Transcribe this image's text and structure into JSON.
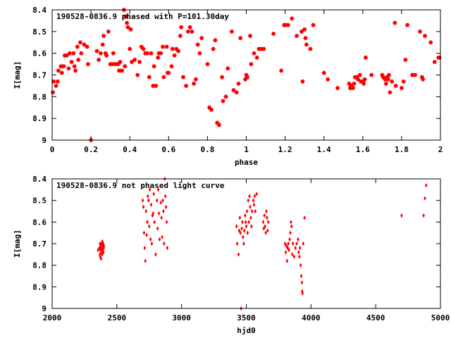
{
  "chart_data": [
    {
      "type": "scatter",
      "title": "190528-0836.9 phased with P=101.30day",
      "xlabel": "phase",
      "ylabel": "I[mag]",
      "xlim": [
        0,
        2
      ],
      "ylim": [
        9,
        8.4
      ],
      "y_inverted": true,
      "xticks": [
        0,
        0.2,
        0.4,
        0.6,
        0.8,
        1,
        1.2,
        1.4,
        1.6,
        1.8,
        2
      ],
      "xtick_labels": [
        "0",
        "0.2",
        "0.4",
        "0.6",
        "0.8",
        "1",
        "1.2",
        "1.4",
        "1.6",
        "1.8",
        "2"
      ],
      "yticks": [
        8.4,
        8.5,
        8.6,
        8.7,
        8.8,
        8.9,
        9
      ],
      "ytick_labels": [
        "8.4",
        "8.5",
        "8.6",
        "8.7",
        "8.8",
        "8.9",
        "9"
      ],
      "marker_color": "#ff0000",
      "marker": "star",
      "points": [
        [
          0.004,
          8.78
        ],
        [
          0.008,
          8.73
        ],
        [
          0.02,
          8.75
        ],
        [
          0.028,
          8.73
        ],
        [
          0.032,
          8.68
        ],
        [
          0.045,
          8.66
        ],
        [
          0.05,
          8.69
        ],
        [
          0.06,
          8.66
        ],
        [
          0.065,
          8.61
        ],
        [
          0.075,
          8.61
        ],
        [
          0.085,
          8.67
        ],
        [
          0.09,
          8.6
        ],
        [
          0.1,
          8.64
        ],
        [
          0.11,
          8.6
        ],
        [
          0.115,
          8.66
        ],
        [
          0.12,
          8.68
        ],
        [
          0.13,
          8.57
        ],
        [
          0.135,
          8.63
        ],
        [
          0.145,
          8.55
        ],
        [
          0.15,
          8.6
        ],
        [
          0.165,
          8.56
        ],
        [
          0.18,
          8.57
        ],
        [
          0.185,
          8.65
        ],
        [
          0.2,
          9.0
        ],
        [
          0.23,
          8.59
        ],
        [
          0.24,
          8.63
        ],
        [
          0.25,
          8.6
        ],
        [
          0.26,
          8.56
        ],
        [
          0.265,
          8.52
        ],
        [
          0.275,
          8.6
        ],
        [
          0.28,
          8.61
        ],
        [
          0.29,
          8.5
        ],
        [
          0.3,
          8.65
        ],
        [
          0.31,
          8.65
        ],
        [
          0.315,
          8.6
        ],
        [
          0.325,
          8.65
        ],
        [
          0.34,
          8.65
        ],
        [
          0.345,
          8.68
        ],
        [
          0.35,
          8.64
        ],
        [
          0.36,
          8.68
        ],
        [
          0.37,
          8.4
        ],
        [
          0.375,
          8.66
        ],
        [
          0.38,
          8.43
        ],
        [
          0.385,
          8.46
        ],
        [
          0.39,
          8.48
        ],
        [
          0.4,
          8.58
        ],
        [
          0.405,
          8.49
        ],
        [
          0.41,
          8.64
        ],
        [
          0.425,
          8.63
        ],
        [
          0.44,
          8.7
        ],
        [
          0.45,
          8.64
        ],
        [
          0.46,
          8.57
        ],
        [
          0.47,
          8.58
        ],
        [
          0.48,
          8.6
        ],
        [
          0.49,
          8.6
        ],
        [
          0.5,
          8.71
        ],
        [
          0.51,
          8.6
        ],
        [
          0.52,
          8.75
        ],
        [
          0.525,
          8.66
        ],
        [
          0.535,
          8.75
        ],
        [
          0.545,
          8.62
        ],
        [
          0.55,
          8.6
        ],
        [
          0.56,
          8.6
        ],
        [
          0.57,
          8.57
        ],
        [
          0.575,
          8.71
        ],
        [
          0.59,
          8.57
        ],
        [
          0.595,
          8.69
        ],
        [
          0.6,
          8.69
        ],
        [
          0.615,
          8.66
        ],
        [
          0.62,
          8.58
        ],
        [
          0.63,
          8.61
        ],
        [
          0.64,
          8.58
        ],
        [
          0.65,
          8.59
        ],
        [
          0.66,
          8.52
        ],
        [
          0.665,
          8.48
        ],
        [
          0.675,
          8.71
        ],
        [
          0.69,
          8.75
        ],
        [
          0.7,
          8.5
        ],
        [
          0.71,
          8.48
        ],
        [
          0.72,
          8.5
        ],
        [
          0.73,
          8.74
        ],
        [
          0.74,
          8.72
        ],
        [
          0.75,
          8.56
        ],
        [
          0.76,
          8.6
        ],
        [
          0.77,
          8.53
        ],
        [
          0.8,
          8.65
        ],
        [
          0.81,
          8.85
        ],
        [
          0.82,
          8.86
        ],
        [
          0.83,
          8.58
        ],
        [
          0.84,
          8.54
        ],
        [
          0.85,
          8.92
        ],
        [
          0.86,
          8.93
        ],
        [
          0.875,
          8.71
        ],
        [
          0.88,
          8.82
        ],
        [
          0.895,
          8.8
        ],
        [
          0.905,
          8.67
        ],
        [
          0.925,
          8.5
        ],
        [
          0.935,
          8.77
        ],
        [
          0.95,
          8.78
        ],
        [
          0.96,
          8.74
        ],
        [
          0.97,
          8.53
        ],
        [
          0.995,
          8.72
        ],
        [
          1.0,
          8.7
        ],
        [
          1.005,
          8.71
        ],
        [
          1.02,
          8.52
        ],
        [
          1.025,
          8.65
        ],
        [
          1.04,
          8.6
        ],
        [
          1.055,
          8.62
        ],
        [
          1.065,
          8.58
        ],
        [
          1.08,
          8.58
        ],
        [
          1.09,
          8.58
        ],
        [
          1.14,
          8.51
        ],
        [
          1.18,
          8.68
        ],
        [
          1.195,
          8.47
        ],
        [
          1.2,
          8.47
        ],
        [
          1.215,
          8.47
        ],
        [
          1.235,
          8.44
        ],
        [
          1.26,
          8.52
        ],
        [
          1.285,
          8.5
        ],
        [
          1.29,
          8.73
        ],
        [
          1.3,
          8.49
        ],
        [
          1.305,
          8.53
        ],
        [
          1.31,
          8.56
        ],
        [
          1.33,
          8.58
        ],
        [
          1.345,
          8.47
        ],
        [
          1.4,
          8.69
        ],
        [
          1.42,
          8.72
        ],
        [
          1.47,
          8.76
        ],
        [
          1.53,
          8.74
        ],
        [
          1.535,
          8.76
        ],
        [
          1.54,
          8.75
        ],
        [
          1.55,
          8.76
        ],
        [
          1.555,
          8.74
        ],
        [
          1.56,
          8.71
        ],
        [
          1.57,
          8.71
        ],
        [
          1.575,
          8.72
        ],
        [
          1.585,
          8.7
        ],
        [
          1.59,
          8.73
        ],
        [
          1.6,
          8.73
        ],
        [
          1.605,
          8.74
        ],
        [
          1.61,
          8.72
        ],
        [
          1.615,
          8.62
        ],
        [
          1.645,
          8.7
        ],
        [
          1.7,
          8.7
        ],
        [
          1.705,
          8.71
        ],
        [
          1.715,
          8.72
        ],
        [
          1.72,
          8.74
        ],
        [
          1.725,
          8.71
        ],
        [
          1.73,
          8.72
        ],
        [
          1.735,
          8.7
        ],
        [
          1.74,
          8.78
        ],
        [
          1.75,
          8.73
        ],
        [
          1.765,
          8.46
        ],
        [
          1.77,
          8.75
        ],
        [
          1.8,
          8.76
        ],
        [
          1.81,
          8.73
        ],
        [
          1.82,
          8.63
        ],
        [
          1.83,
          8.47
        ],
        [
          1.855,
          8.7
        ],
        [
          1.87,
          8.7
        ],
        [
          1.895,
          8.5
        ],
        [
          1.905,
          8.71
        ],
        [
          1.91,
          8.72
        ],
        [
          1.92,
          8.52
        ],
        [
          1.95,
          8.55
        ],
        [
          1.97,
          8.64
        ],
        [
          1.99,
          8.62
        ],
        [
          1.995,
          8.62
        ]
      ]
    },
    {
      "type": "scatter",
      "title": "190528-0836.9 not phased light curve",
      "xlabel": "hjd0",
      "ylabel": "I[mag]",
      "xlim": [
        2000,
        5000
      ],
      "ylim": [
        9,
        8.4
      ],
      "y_inverted": true,
      "xticks": [
        2000,
        2500,
        3000,
        3500,
        4000,
        4500,
        5000
      ],
      "xtick_labels": [
        "2000",
        "2500",
        "3000",
        "3500",
        "4000",
        "4500",
        "5000"
      ],
      "yticks": [
        8.4,
        8.5,
        8.6,
        8.7,
        8.8,
        8.9,
        9
      ],
      "ytick_labels": [
        "8.4",
        "8.5",
        "8.6",
        "8.7",
        "8.8",
        "8.9",
        "9"
      ],
      "marker_color": "#ff0000",
      "marker": "diamond",
      "points": [
        [
          2355,
          8.73
        ],
        [
          2365,
          8.72
        ],
        [
          2368,
          8.75
        ],
        [
          2370,
          8.7
        ],
        [
          2372,
          8.76
        ],
        [
          2374,
          8.73
        ],
        [
          2376,
          8.71
        ],
        [
          2378,
          8.77
        ],
        [
          2380,
          8.74
        ],
        [
          2382,
          8.7
        ],
        [
          2384,
          8.72
        ],
        [
          2386,
          8.75
        ],
        [
          2388,
          8.69
        ],
        [
          2390,
          8.71
        ],
        [
          2392,
          8.73
        ],
        [
          2394,
          8.7
        ],
        [
          2396,
          8.74
        ],
        [
          2398,
          8.72
        ],
        [
          2400,
          8.71
        ],
        [
          2700,
          8.5
        ],
        [
          2705,
          8.53
        ],
        [
          2710,
          8.65
        ],
        [
          2715,
          8.72
        ],
        [
          2720,
          8.78
        ],
        [
          2725,
          8.55
        ],
        [
          2730,
          8.66
        ],
        [
          2735,
          8.6
        ],
        [
          2740,
          8.48
        ],
        [
          2745,
          8.5
        ],
        [
          2750,
          8.62
        ],
        [
          2755,
          8.45
        ],
        [
          2760,
          8.68
        ],
        [
          2765,
          8.52
        ],
        [
          2770,
          8.7
        ],
        [
          2775,
          8.57
        ],
        [
          2780,
          8.56
        ],
        [
          2785,
          8.47
        ],
        [
          2790,
          8.6
        ],
        [
          2800,
          8.75
        ],
        [
          2810,
          8.5
        ],
        [
          2815,
          8.63
        ],
        [
          2820,
          8.45
        ],
        [
          2825,
          8.56
        ],
        [
          2830,
          8.68
        ],
        [
          2840,
          8.51
        ],
        [
          2845,
          8.58
        ],
        [
          2850,
          8.67
        ],
        [
          2855,
          8.5
        ],
        [
          2860,
          8.55
        ],
        [
          2865,
          8.7
        ],
        [
          2870,
          8.4
        ],
        [
          2875,
          8.48
        ],
        [
          2880,
          8.53
        ],
        [
          2885,
          8.6
        ],
        [
          2890,
          8.72
        ],
        [
          3425,
          8.62
        ],
        [
          3430,
          8.7
        ],
        [
          3440,
          8.75
        ],
        [
          3445,
          8.64
        ],
        [
          3450,
          8.58
        ],
        [
          3455,
          8.65
        ],
        [
          3460,
          9.0
        ],
        [
          3465,
          8.63
        ],
        [
          3470,
          8.6
        ],
        [
          3475,
          8.67
        ],
        [
          3480,
          8.7
        ],
        [
          3485,
          8.64
        ],
        [
          3490,
          8.57
        ],
        [
          3495,
          8.6
        ],
        [
          3500,
          8.62
        ],
        [
          3505,
          8.55
        ],
        [
          3510,
          8.65
        ],
        [
          3515,
          8.5
        ],
        [
          3520,
          8.6
        ],
        [
          3525,
          8.48
        ],
        [
          3530,
          8.53
        ],
        [
          3535,
          8.58
        ],
        [
          3540,
          8.62
        ],
        [
          3545,
          8.55
        ],
        [
          3555,
          8.5
        ],
        [
          3560,
          8.52
        ],
        [
          3565,
          8.48
        ],
        [
          3570,
          8.55
        ],
        [
          3580,
          8.47
        ],
        [
          3630,
          8.6
        ],
        [
          3635,
          8.63
        ],
        [
          3640,
          8.57
        ],
        [
          3645,
          8.62
        ],
        [
          3650,
          8.65
        ],
        [
          3655,
          8.55
        ],
        [
          3660,
          8.58
        ],
        [
          3665,
          8.64
        ],
        [
          3670,
          8.6
        ],
        [
          3800,
          8.7
        ],
        [
          3805,
          8.74
        ],
        [
          3810,
          8.71
        ],
        [
          3815,
          8.78
        ],
        [
          3820,
          8.72
        ],
        [
          3825,
          8.7
        ],
        [
          3830,
          8.73
        ],
        [
          3835,
          8.68
        ],
        [
          3840,
          8.65
        ],
        [
          3845,
          8.6
        ],
        [
          3850,
          8.62
        ],
        [
          3855,
          8.75
        ],
        [
          3860,
          8.7
        ],
        [
          3870,
          8.76
        ],
        [
          3880,
          8.72
        ],
        [
          3890,
          8.7
        ],
        [
          3900,
          8.68
        ],
        [
          3905,
          8.74
        ],
        [
          3910,
          8.76
        ],
        [
          3915,
          8.72
        ],
        [
          3920,
          8.8
        ],
        [
          3925,
          8.85
        ],
        [
          3930,
          8.88
        ],
        [
          3932,
          8.92
        ],
        [
          3935,
          8.93
        ],
        [
          3940,
          8.7
        ],
        [
          3950,
          8.58
        ],
        [
          4700,
          8.57
        ],
        [
          4870,
          8.57
        ],
        [
          4880,
          8.49
        ],
        [
          4890,
          8.43
        ]
      ]
    }
  ]
}
